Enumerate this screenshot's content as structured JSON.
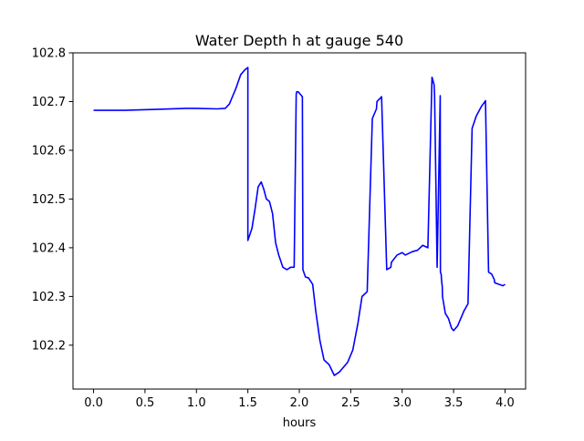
{
  "chart_data": {
    "type": "line",
    "title": "Water Depth h at gauge 540",
    "xlabel": "hours",
    "ylabel": "",
    "xlim": [
      -0.2,
      4.2
    ],
    "ylim": [
      102.11,
      102.8
    ],
    "xticks": [
      0.0,
      0.5,
      1.0,
      1.5,
      2.0,
      2.5,
      3.0,
      3.5,
      4.0
    ],
    "xtick_labels": [
      "0.0",
      "0.5",
      "1.0",
      "1.5",
      "2.0",
      "2.5",
      "3.0",
      "3.5",
      "4.0"
    ],
    "yticks": [
      102.2,
      102.3,
      102.4,
      102.5,
      102.6,
      102.7,
      102.8
    ],
    "ytick_labels": [
      "102.2",
      "102.3",
      "102.4",
      "102.5",
      "102.6",
      "102.7",
      "102.8"
    ],
    "grid": false,
    "series": [
      {
        "color": "#0000ff",
        "x": [
          0.0,
          0.3,
          0.6,
          0.9,
          1.0,
          1.2,
          1.28,
          1.32,
          1.38,
          1.43,
          1.47,
          1.5,
          1.5,
          1.54,
          1.57,
          1.6,
          1.63,
          1.655,
          1.68,
          1.71,
          1.74,
          1.77,
          1.8,
          1.84,
          1.88,
          1.915,
          1.95,
          1.97,
          1.975,
          1.99,
          2.01,
          2.03,
          2.035,
          2.06,
          2.09,
          2.13,
          2.16,
          2.2,
          2.24,
          2.29,
          2.34,
          2.39,
          2.41,
          2.47,
          2.52,
          2.57,
          2.61,
          2.66,
          2.71,
          2.75,
          2.755,
          2.8,
          2.85,
          2.89,
          2.895,
          2.95,
          3.0,
          3.03,
          3.06,
          3.1,
          3.15,
          3.2,
          3.25,
          3.29,
          3.31,
          3.315,
          3.34,
          3.37,
          3.372,
          3.38,
          3.382,
          3.39,
          3.392,
          3.42,
          3.45,
          3.48,
          3.5,
          3.54,
          3.57,
          3.6,
          3.64,
          3.68,
          3.72,
          3.77,
          3.805,
          3.81,
          3.84,
          3.87,
          3.895,
          3.9,
          3.94,
          3.98,
          4.0
        ],
        "y": [
          102.682,
          102.682,
          102.684,
          102.686,
          102.686,
          102.685,
          102.686,
          102.695,
          102.725,
          102.755,
          102.765,
          102.77,
          102.415,
          102.44,
          102.48,
          102.525,
          102.535,
          102.52,
          102.5,
          102.495,
          102.47,
          102.41,
          102.385,
          102.36,
          102.355,
          102.36,
          102.36,
          102.715,
          102.72,
          102.72,
          102.715,
          102.71,
          102.355,
          102.34,
          102.338,
          102.325,
          102.27,
          102.21,
          102.17,
          102.16,
          102.138,
          102.145,
          102.15,
          102.165,
          102.19,
          102.245,
          102.3,
          102.31,
          102.665,
          102.685,
          102.7,
          102.71,
          102.355,
          102.36,
          102.37,
          102.385,
          102.39,
          102.385,
          102.388,
          102.392,
          102.395,
          102.405,
          102.4,
          102.75,
          102.735,
          102.715,
          102.36,
          102.712,
          102.35,
          102.345,
          102.335,
          102.32,
          102.3,
          102.265,
          102.255,
          102.235,
          102.23,
          102.24,
          102.255,
          102.27,
          102.285,
          102.645,
          102.67,
          102.69,
          102.7,
          102.702,
          102.35,
          102.346,
          102.335,
          102.328,
          102.325,
          102.322,
          102.325
        ]
      }
    ]
  }
}
